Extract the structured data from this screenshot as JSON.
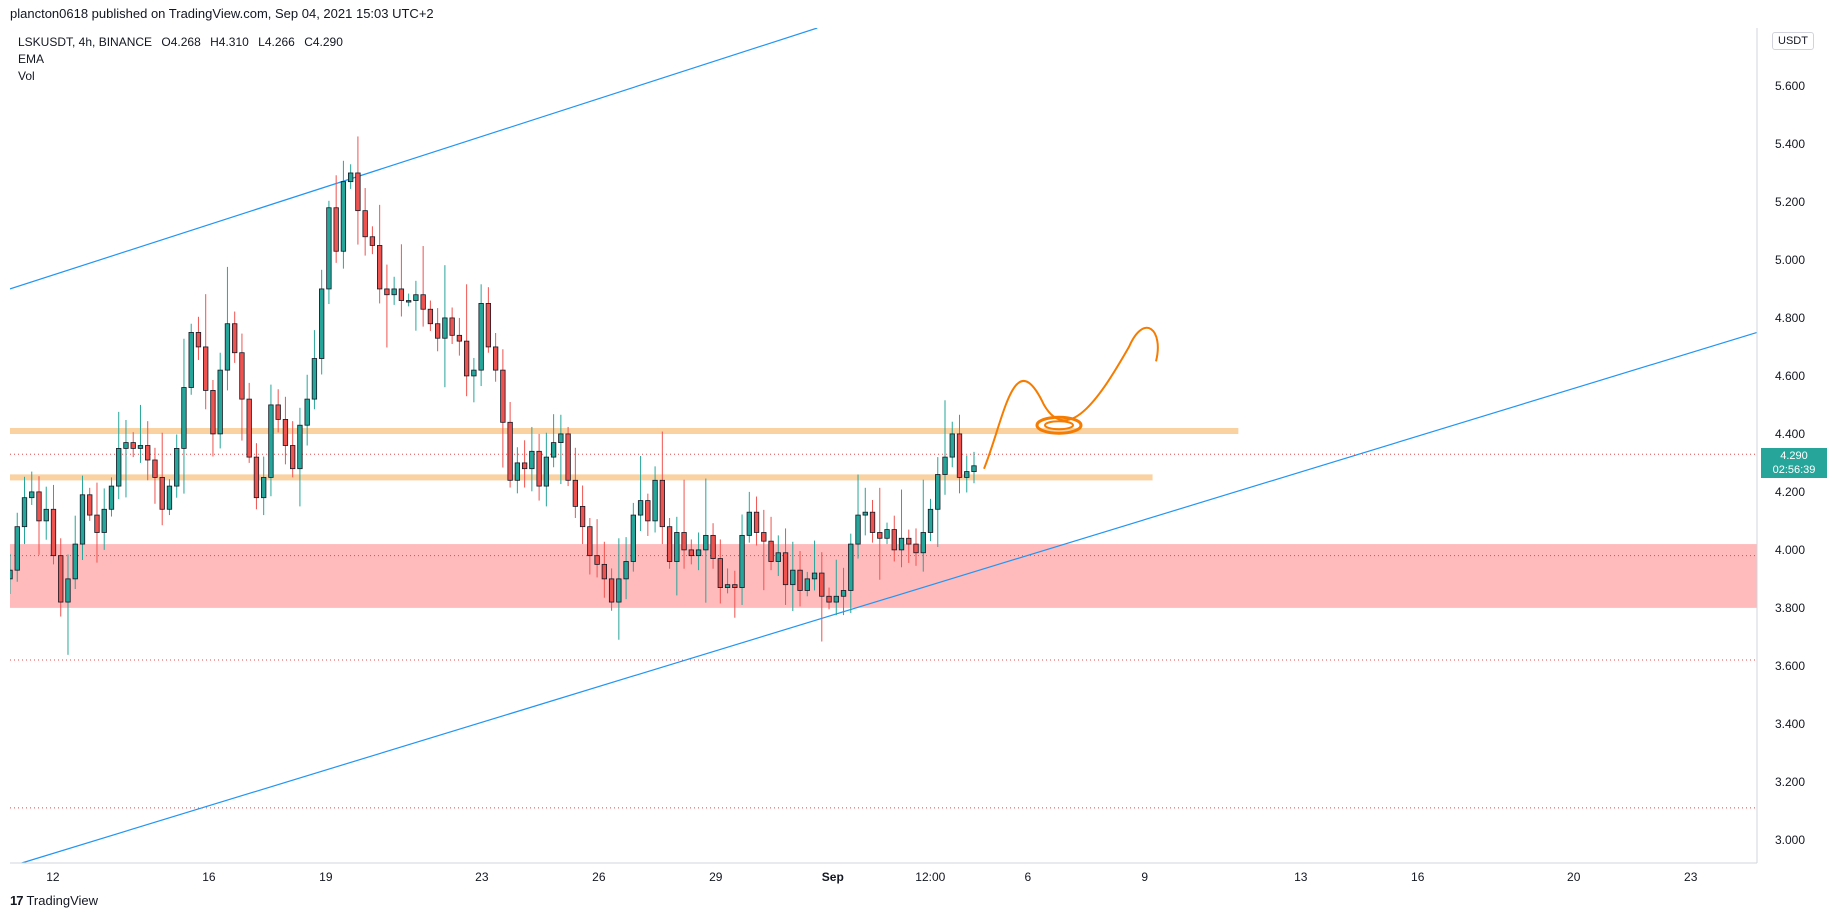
{
  "header": {
    "caption": "plancton0618 published on TradingView.com, Sep 04, 2021 15:03 UTC+2"
  },
  "legend": {
    "symbol": "LSKUSDT, 4h, BINANCE",
    "open": "O4.268",
    "high": "H4.310",
    "low": "L4.266",
    "close": "C4.290",
    "indicator1": "EMA",
    "indicator2": "Vol"
  },
  "price_axis": {
    "currency": "USDT",
    "last_price": "4.290",
    "countdown": "02:56:39"
  },
  "footer": {
    "brand": "TradingView"
  },
  "colors": {
    "up": "#26a69a",
    "down": "#ef5350",
    "channel": "#2196f3",
    "zone": "#ffb2b5",
    "resistance_band": "#f9c98f",
    "drawing": "#f57c00",
    "dotted": "#e04848"
  },
  "chart_data": {
    "type": "candlestick",
    "symbol": "LSKUSDT",
    "interval": "4h",
    "exchange": "BINANCE",
    "y_axis": {
      "range": [
        2.92,
        5.8
      ],
      "ticks": [
        "5.600",
        "5.400",
        "5.200",
        "5.000",
        "4.800",
        "4.600",
        "4.400",
        "4.200",
        "4.000",
        "3.800",
        "3.600",
        "3.400",
        "3.200",
        "3.000"
      ]
    },
    "x_axis": {
      "range_days": [
        10.9,
        55.7
      ],
      "ticks": [
        {
          "label": "12",
          "day": 12
        },
        {
          "label": "16",
          "day": 16
        },
        {
          "label": "19",
          "day": 19
        },
        {
          "label": "23",
          "day": 23
        },
        {
          "label": "26",
          "day": 26
        },
        {
          "label": "29",
          "day": 29
        },
        {
          "label": "Sep",
          "day": 32
        },
        {
          "label": "12:00",
          "day": 34.5
        },
        {
          "label": "6",
          "day": 37
        },
        {
          "label": "9",
          "day": 40
        },
        {
          "label": "13",
          "day": 44
        },
        {
          "label": "16",
          "day": 47
        },
        {
          "label": "20",
          "day": 51
        },
        {
          "label": "23",
          "day": 54
        }
      ]
    },
    "candles_close": [
      3.93,
      4.08,
      4.18,
      4.2,
      4.1,
      4.14,
      3.98,
      3.82,
      3.9,
      4.02,
      4.19,
      4.12,
      4.06,
      4.14,
      4.22,
      4.35,
      4.37,
      4.35,
      4.36,
      4.31,
      4.25,
      4.14,
      4.22,
      4.35,
      4.56,
      4.75,
      4.7,
      4.55,
      4.4,
      4.62,
      4.78,
      4.68,
      4.52,
      4.32,
      4.18,
      4.25,
      4.5,
      4.45,
      4.36,
      4.28,
      4.43,
      4.52,
      4.66,
      4.9,
      5.18,
      5.03,
      5.27,
      5.3,
      5.17,
      5.08,
      5.05,
      4.9,
      4.88,
      4.9,
      4.86,
      4.86,
      4.88,
      4.83,
      4.78,
      4.73,
      4.8,
      4.74,
      4.72,
      4.6,
      4.62,
      4.85,
      4.7,
      4.62,
      4.44,
      4.24,
      4.3,
      4.28,
      4.34,
      4.22,
      4.32,
      4.37,
      4.4,
      4.24,
      4.15,
      4.08,
      3.98,
      3.95,
      3.9,
      3.82,
      3.9,
      3.96,
      4.12,
      4.17,
      4.1,
      4.24,
      4.08,
      3.96,
      4.06,
      4.0,
      3.98,
      4.0,
      4.05,
      3.97,
      3.87,
      3.88,
      3.87,
      4.05,
      4.13,
      4.06,
      4.03,
      3.96,
      3.99,
      3.88,
      3.93,
      3.86,
      3.9,
      3.92,
      3.84,
      3.82,
      3.84,
      3.86,
      4.02,
      4.12,
      4.13,
      4.06,
      4.04,
      4.07,
      4.0,
      4.04,
      4.02,
      3.99,
      4.06,
      4.14,
      4.26,
      4.32,
      4.4,
      4.25,
      4.27,
      4.29
    ],
    "overlays": {
      "support_zone": [
        3.8,
        4.02
      ],
      "resistance_bands": [
        4.41,
        4.25
      ],
      "dotted_levels": [
        4.33,
        3.98,
        3.62,
        3.11
      ],
      "channel_upper": [
        [
          10.9,
          4.9
        ],
        [
          31.6,
          5.8
        ]
      ],
      "channel_lower": [
        [
          11.2,
          2.92
        ],
        [
          55.7,
          4.75
        ]
      ]
    }
  }
}
